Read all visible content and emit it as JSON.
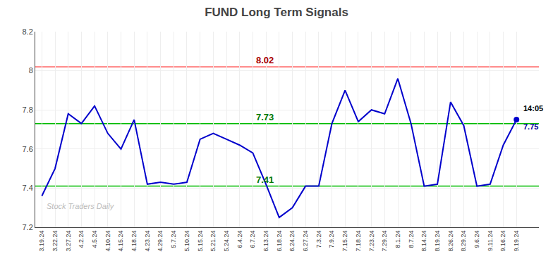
{
  "chart_data": {
    "type": "line",
    "title": "FUND Long Term Signals",
    "categories": [
      "3.19.24",
      "3.22.24",
      "3.27.24",
      "4.2.24",
      "4.5.24",
      "4.10.24",
      "4.15.24",
      "4.18.24",
      "4.23.24",
      "4.29.24",
      "5.7.24",
      "5.10.24",
      "5.15.24",
      "5.21.24",
      "5.24.24",
      "6.4.24",
      "6.7.24",
      "6.13.24",
      "6.18.24",
      "6.24.24",
      "6.27.24",
      "7.3.24",
      "7.9.24",
      "7.15.24",
      "7.18.24",
      "7.23.24",
      "7.29.24",
      "8.1.24",
      "8.7.24",
      "8.14.24",
      "8.19.24",
      "8.26.24",
      "8.29.24",
      "9.6.24",
      "9.11.24",
      "9.16.24",
      "9.19.24"
    ],
    "values": [
      7.36,
      7.5,
      7.78,
      7.73,
      7.82,
      7.68,
      7.6,
      7.75,
      7.42,
      7.43,
      7.42,
      7.43,
      7.65,
      7.68,
      7.65,
      7.62,
      7.58,
      7.42,
      7.25,
      7.3,
      7.41,
      7.41,
      7.73,
      7.9,
      7.74,
      7.8,
      7.78,
      7.96,
      7.73,
      7.41,
      7.42,
      7.84,
      7.72,
      7.41,
      7.42,
      7.62,
      7.75
    ],
    "color": "#0000cc",
    "ylim": [
      7.2,
      8.2
    ],
    "yticks": [
      7.2,
      7.4,
      7.6,
      7.8,
      8.0,
      8.2
    ],
    "grid": true,
    "hlines": [
      {
        "value": 8.02,
        "color": "#ff6666",
        "label": "8.02",
        "label_color": "#aa0000"
      },
      {
        "value": 7.73,
        "color": "#00bb00",
        "label": "7.73",
        "label_color": "#007700"
      },
      {
        "value": 7.41,
        "color": "#00bb00",
        "label": "7.41",
        "label_color": "#007700"
      }
    ],
    "last_point": {
      "marker": "circle",
      "label": "14:05",
      "label_color": "#000000",
      "value_label": "7.75",
      "value_label_color": "#000099"
    },
    "watermark": {
      "text": "Stock Traders Daily",
      "color": "#bbbbbb"
    }
  }
}
